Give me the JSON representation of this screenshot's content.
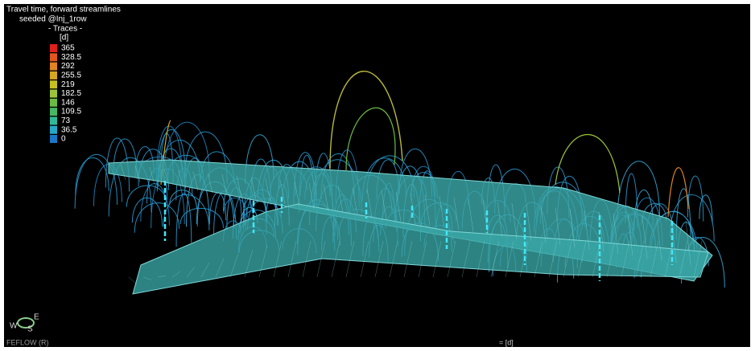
{
  "title": [
    "Travel time, forward streamlines",
    "seeded @Inj_1row",
    "- Traces -"
  ],
  "legend": {
    "unit": "[d]",
    "items": [
      {
        "label": 365,
        "color": "#e0201b"
      },
      {
        "label": 328.5,
        "color": "#e0561e"
      },
      {
        "label": 292,
        "color": "#e08420"
      },
      {
        "label": 255.5,
        "color": "#d6a620"
      },
      {
        "label": 219,
        "color": "#c6c020"
      },
      {
        "label": 182.5,
        "color": "#9cc43a"
      },
      {
        "label": 146,
        "color": "#6cbc44"
      },
      {
        "label": 109.5,
        "color": "#46b862"
      },
      {
        "label": 73,
        "color": "#30b89a"
      },
      {
        "label": 36.5,
        "color": "#28a8c8"
      },
      {
        "label": 0,
        "color": "#1a78c8"
      }
    ]
  },
  "compass": {
    "west": "W",
    "south": "S",
    "east": "E"
  },
  "footer": {
    "product": "FEFLOW (R)",
    "unit_note": "= [d]"
  }
}
